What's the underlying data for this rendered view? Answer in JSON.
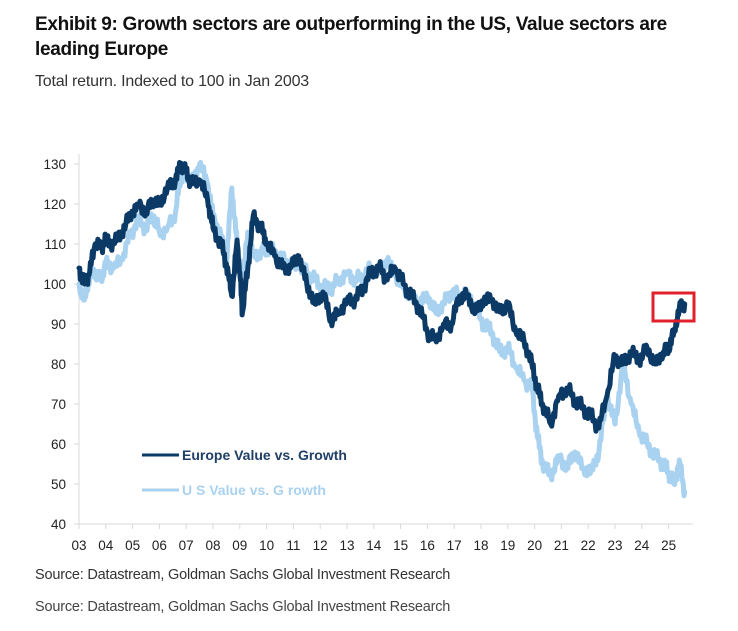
{
  "chart_data": {
    "type": "line",
    "title": "Exhibit 9: Growth sectors are outperforming in the US, Value sectors are leading Europe",
    "subtitle": "Total return. Indexed to 100 in Jan 2003",
    "xlabel": "",
    "ylabel": "",
    "ylim": [
      40,
      130
    ],
    "xlim": [
      2003,
      2025.8
    ],
    "yticks": [
      40,
      50,
      60,
      70,
      80,
      90,
      100,
      110,
      120,
      130
    ],
    "xtick_labels": [
      "03",
      "04",
      "05",
      "06",
      "07",
      "08",
      "09",
      "10",
      "11",
      "12",
      "13",
      "14",
      "15",
      "16",
      "17",
      "18",
      "19",
      "20",
      "21",
      "22",
      "23",
      "24",
      "25"
    ],
    "grid": false,
    "legend_position": "bottom-left",
    "series": [
      {
        "name": "Europe Value vs. Growth",
        "color": "#0b3a66",
        "x": [
          2003.0,
          2003.2,
          2003.4,
          2003.6,
          2003.8,
          2004.0,
          2004.3,
          2004.6,
          2004.9,
          2005.2,
          2005.5,
          2005.8,
          2006.0,
          2006.3,
          2006.6,
          2006.8,
          2007.0,
          2007.2,
          2007.5,
          2007.8,
          2008.0,
          2008.3,
          2008.5,
          2008.7,
          2008.9,
          2009.0,
          2009.1,
          2009.3,
          2009.5,
          2009.8,
          2010.0,
          2010.3,
          2010.6,
          2010.9,
          2011.2,
          2011.5,
          2011.8,
          2012.1,
          2012.4,
          2012.7,
          2013.0,
          2013.3,
          2013.6,
          2013.9,
          2014.2,
          2014.5,
          2014.8,
          2015.1,
          2015.4,
          2015.7,
          2016.0,
          2016.3,
          2016.6,
          2016.9,
          2017.2,
          2017.5,
          2017.8,
          2018.1,
          2018.4,
          2018.7,
          2019.0,
          2019.3,
          2019.6,
          2019.9,
          2020.1,
          2020.3,
          2020.6,
          2020.9,
          2021.2,
          2021.5,
          2021.8,
          2022.1,
          2022.4,
          2022.7,
          2023.0,
          2023.3,
          2023.6,
          2023.9,
          2024.2,
          2024.5,
          2024.8,
          2025.0,
          2025.2,
          2025.4,
          2025.6
        ],
        "y": [
          104,
          100,
          103,
          110,
          109,
          111,
          110,
          113,
          117,
          120,
          118,
          121,
          120,
          124,
          126,
          130,
          128,
          125,
          126,
          121,
          114,
          110,
          105,
          97,
          111,
          103,
          93,
          104,
          117,
          114,
          110,
          107,
          104,
          104,
          107,
          100,
          95,
          98,
          91,
          93,
          96,
          96,
          99,
          103,
          104,
          101,
          104,
          100,
          97,
          94,
          88,
          86,
          90,
          90,
          97,
          97,
          93,
          96,
          96,
          93,
          95,
          88,
          86,
          80,
          74,
          70,
          65,
          72,
          74,
          71,
          69,
          67,
          64,
          72,
          82,
          80,
          83,
          81,
          84,
          80,
          83,
          84,
          88,
          94,
          95
        ]
      },
      {
        "name": "US Value vs. Growth",
        "color": "#a9d2f0",
        "x": [
          2003.0,
          2003.2,
          2003.4,
          2003.6,
          2003.8,
          2004.0,
          2004.3,
          2004.6,
          2004.9,
          2005.2,
          2005.5,
          2005.8,
          2006.0,
          2006.3,
          2006.6,
          2006.8,
          2007.0,
          2007.2,
          2007.5,
          2007.8,
          2008.0,
          2008.3,
          2008.5,
          2008.7,
          2008.9,
          2009.0,
          2009.1,
          2009.3,
          2009.5,
          2009.8,
          2010.0,
          2010.3,
          2010.6,
          2010.9,
          2011.2,
          2011.5,
          2011.8,
          2012.1,
          2012.4,
          2012.7,
          2013.0,
          2013.3,
          2013.6,
          2013.9,
          2014.2,
          2014.5,
          2014.8,
          2015.1,
          2015.4,
          2015.7,
          2016.0,
          2016.3,
          2016.6,
          2016.9,
          2017.2,
          2017.5,
          2017.8,
          2018.1,
          2018.4,
          2018.7,
          2019.0,
          2019.3,
          2019.6,
          2019.9,
          2020.1,
          2020.3,
          2020.6,
          2020.9,
          2021.2,
          2021.5,
          2021.8,
          2022.1,
          2022.4,
          2022.7,
          2023.0,
          2023.3,
          2023.6,
          2023.9,
          2024.2,
          2024.5,
          2024.8,
          2025.0,
          2025.2,
          2025.4,
          2025.6
        ],
        "y": [
          100,
          96,
          102,
          103,
          101,
          105,
          104,
          106,
          112,
          116,
          114,
          117,
          113,
          114,
          118,
          127,
          128,
          125,
          130,
          125,
          117,
          112,
          105,
          124,
          110,
          104,
          100,
          113,
          107,
          108,
          109,
          108,
          106,
          105,
          104,
          103,
          101,
          99,
          99,
          101,
          103,
          101,
          102,
          104,
          103,
          106,
          102,
          99,
          97,
          95,
          97,
          93,
          95,
          98,
          97,
          98,
          94,
          90,
          88,
          83,
          84,
          79,
          76,
          74,
          62,
          55,
          52,
          57,
          54,
          58,
          54,
          53,
          58,
          72,
          65,
          80,
          70,
          63,
          60,
          57,
          55,
          53,
          50,
          56,
          48
        ]
      }
    ],
    "annotations": [
      {
        "type": "highlight-box",
        "color": "#e0202a",
        "note": "Latest Europe Value vs. Growth level (~95)"
      }
    ]
  },
  "legend": [
    {
      "label": "Europe Value vs. Growth",
      "color": "#0b3a66"
    },
    {
      "label": "U S Value vs. G rowth",
      "color": "#a9d2f0"
    }
  ],
  "source_lines": [
    "Source: Datastream, Goldman Sachs Global Investment Research",
    "Source: Datastream, Goldman Sachs Global Investment Research"
  ]
}
